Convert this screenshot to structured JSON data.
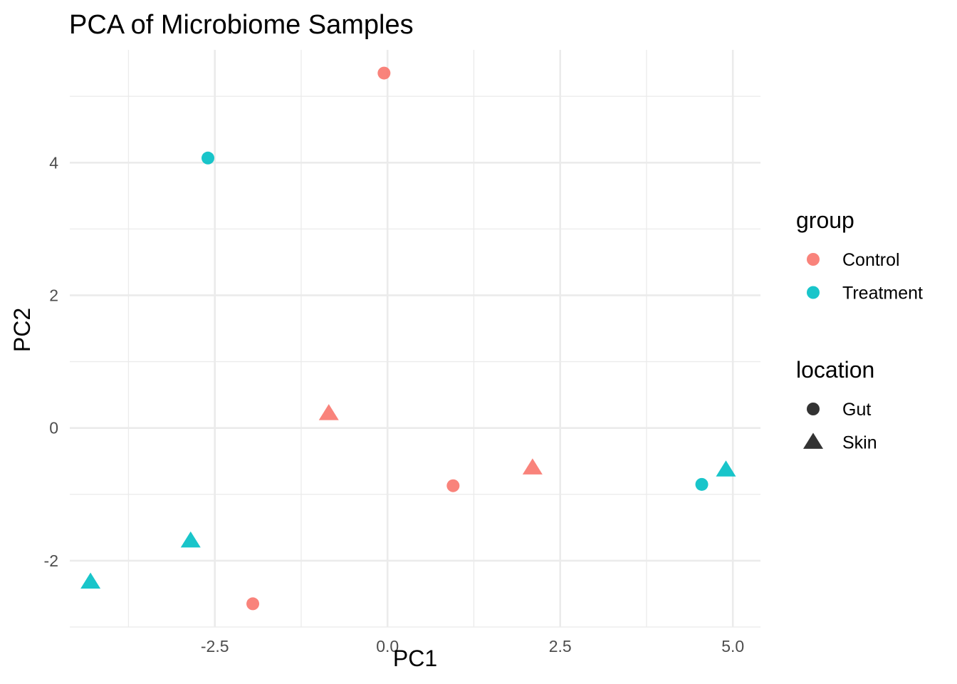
{
  "chart_data": {
    "type": "scatter",
    "title": "PCA of Microbiome Samples",
    "xlabel": "PC1",
    "ylabel": "PC2",
    "xlim": [
      -4.6,
      5.4
    ],
    "ylim": [
      -3.0,
      5.7
    ],
    "x_ticks": [
      -2.5,
      0.0,
      2.5,
      5.0
    ],
    "x_tick_labels": [
      "-2.5",
      "0.0",
      "2.5",
      "5.0"
    ],
    "y_ticks": [
      -2,
      0,
      2,
      4
    ],
    "y_tick_labels": [
      "-2",
      "0",
      "2",
      "4"
    ],
    "x_minor_ticks": [
      -3.75,
      -1.25,
      1.25,
      3.75
    ],
    "y_minor_ticks": [
      -3,
      -1,
      1,
      3,
      5
    ],
    "grid": true,
    "legends": [
      {
        "title": "group",
        "entries": [
          {
            "label": "Control",
            "color": "#F8766D",
            "shape": "circle"
          },
          {
            "label": "Treatment",
            "color": "#00BFC4",
            "shape": "circle"
          }
        ]
      },
      {
        "title": "location",
        "entries": [
          {
            "label": "Gut",
            "color": "#333333",
            "shape": "circle"
          },
          {
            "label": "Skin",
            "color": "#333333",
            "shape": "triangle"
          }
        ]
      }
    ],
    "legend_position": "right",
    "series": [
      {
        "group": "Control",
        "color": "#F8766D",
        "points": [
          {
            "x": -0.05,
            "y": 5.35,
            "location": "Gut"
          },
          {
            "x": 0.95,
            "y": -0.87,
            "location": "Gut"
          },
          {
            "x": -1.95,
            "y": -2.65,
            "location": "Gut"
          },
          {
            "x": -0.85,
            "y": 0.22,
            "location": "Skin"
          },
          {
            "x": 2.1,
            "y": -0.6,
            "location": "Skin"
          }
        ]
      },
      {
        "group": "Treatment",
        "color": "#00BFC4",
        "points": [
          {
            "x": -2.6,
            "y": 4.07,
            "location": "Gut"
          },
          {
            "x": 4.55,
            "y": -0.85,
            "location": "Gut"
          },
          {
            "x": -2.85,
            "y": -1.7,
            "location": "Skin"
          },
          {
            "x": -4.3,
            "y": -2.32,
            "location": "Skin"
          },
          {
            "x": 4.9,
            "y": -0.63,
            "location": "Skin"
          }
        ]
      }
    ]
  }
}
